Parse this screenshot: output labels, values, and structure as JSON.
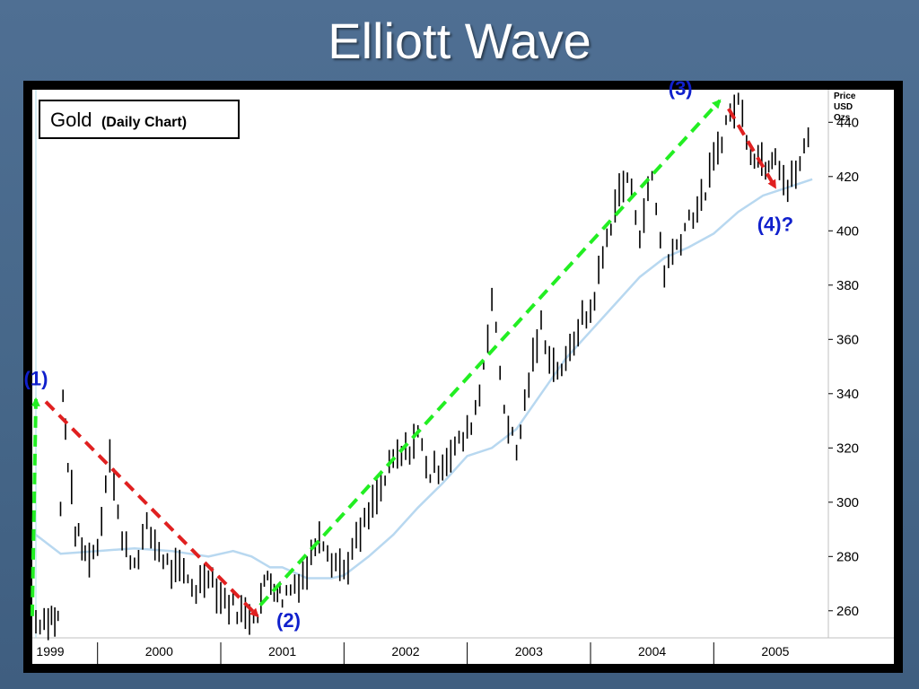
{
  "slide": {
    "title": "Elliott Wave"
  },
  "chart_box": {
    "title": "Gold",
    "subtitle": "(Daily Chart)"
  },
  "colors": {
    "up_arrow": "#22ee22",
    "down_arrow": "#e02020",
    "label": "#1020cc",
    "moving_average": "#b8d8f0",
    "price_bars": "#000000",
    "background": "#ffffff"
  },
  "chart_data": {
    "type": "line",
    "title": "Gold (Daily Chart)",
    "ylabel": "Price USD Ozs",
    "y_axis_labels": [
      "Price",
      "USD",
      "Ozs"
    ],
    "ylim": [
      250,
      452
    ],
    "yticks": [
      260,
      280,
      300,
      320,
      340,
      360,
      380,
      400,
      420,
      440
    ],
    "x_tick_labels": [
      "1999",
      "2000",
      "2001",
      "2002",
      "2003",
      "2004",
      "2005"
    ],
    "xlim": [
      1999.0,
      2005.35
    ],
    "grid": false,
    "series": [
      {
        "style": "bars",
        "x": [
          1999.0,
          1999.1,
          1999.18,
          1999.22,
          1999.26,
          1999.32,
          1999.4,
          1999.5,
          1999.6,
          1999.7,
          1999.8,
          1999.9,
          2000.0,
          2000.1,
          2000.2,
          2000.3,
          2000.4,
          2000.5,
          2000.6,
          2000.7,
          2000.8,
          2000.88,
          2000.96,
          2001.0,
          2001.1,
          2001.2,
          2001.3,
          2001.4,
          2001.5,
          2001.6,
          2001.7,
          2001.8,
          2001.9,
          2002.0,
          2002.1,
          2002.2,
          2002.3,
          2002.4,
          2002.5,
          2002.6,
          2002.7,
          2002.8,
          2002.9,
          2003.0,
          2003.1,
          2003.2,
          2003.3,
          2003.4,
          2003.5,
          2003.6,
          2003.7,
          2003.8,
          2003.9,
          2004.0,
          2004.1,
          2004.2,
          2004.3,
          2004.4,
          2004.5,
          2004.6,
          2004.7,
          2004.8,
          2004.92,
          2005.0,
          2005.1,
          2005.2,
          2005.3
        ],
        "values": [
          256,
          258,
          257,
          338,
          315,
          290,
          280,
          283,
          320,
          285,
          278,
          290,
          282,
          275,
          273,
          268,
          275,
          265,
          262,
          258,
          260,
          273,
          268,
          265,
          270,
          275,
          290,
          280,
          275,
          285,
          295,
          305,
          315,
          318,
          325,
          310,
          315,
          320,
          325,
          340,
          375,
          335,
          318,
          345,
          365,
          350,
          350,
          365,
          370,
          390,
          410,
          420,
          400,
          420,
          385,
          395,
          405,
          410,
          425,
          440,
          448,
          430,
          425,
          430,
          415,
          425,
          438
        ]
      },
      {
        "name": "Moving Average",
        "style": "line",
        "x": [
          1999.0,
          1999.2,
          1999.5,
          1999.8,
          2000.1,
          2000.4,
          2000.6,
          2000.75,
          2000.9,
          2001.0,
          2001.1,
          2001.2,
          2001.4,
          2001.5,
          2001.7,
          2001.9,
          2002.1,
          2002.3,
          2002.5,
          2002.7,
          2002.9,
          2003.1,
          2003.3,
          2003.5,
          2003.7,
          2003.9,
          2004.1,
          2004.3,
          2004.5,
          2004.7,
          2004.9,
          2005.1,
          2005.3
        ],
        "values": [
          288,
          281,
          282,
          283,
          282,
          280,
          282,
          280,
          276,
          276,
          274,
          272,
          272,
          273,
          280,
          288,
          298,
          307,
          317,
          320,
          327,
          340,
          353,
          363,
          373,
          383,
          390,
          394,
          399,
          407,
          413,
          416,
          419
        ]
      }
    ],
    "annotations": [
      {
        "label": "(1)",
        "x": 1999.0,
        "y": 343
      },
      {
        "label": "(2)",
        "x": 2001.05,
        "y": 254
      },
      {
        "label": "(3)",
        "x": 2004.23,
        "y": 450
      },
      {
        "label": "(4)?",
        "x": 2005.0,
        "y": 400
      }
    ],
    "arrows": [
      {
        "color": "up_arrow",
        "from": [
          1998.97,
          258
        ],
        "to": [
          1999.0,
          338
        ]
      },
      {
        "color": "down_arrow",
        "from": [
          1999.08,
          337
        ],
        "to": [
          2000.8,
          258
        ]
      },
      {
        "color": "up_arrow",
        "from": [
          2000.82,
          262
        ],
        "to": [
          2004.55,
          448
        ]
      },
      {
        "color": "down_arrow",
        "from": [
          2004.62,
          445
        ],
        "to": [
          2005.0,
          416
        ]
      }
    ]
  }
}
